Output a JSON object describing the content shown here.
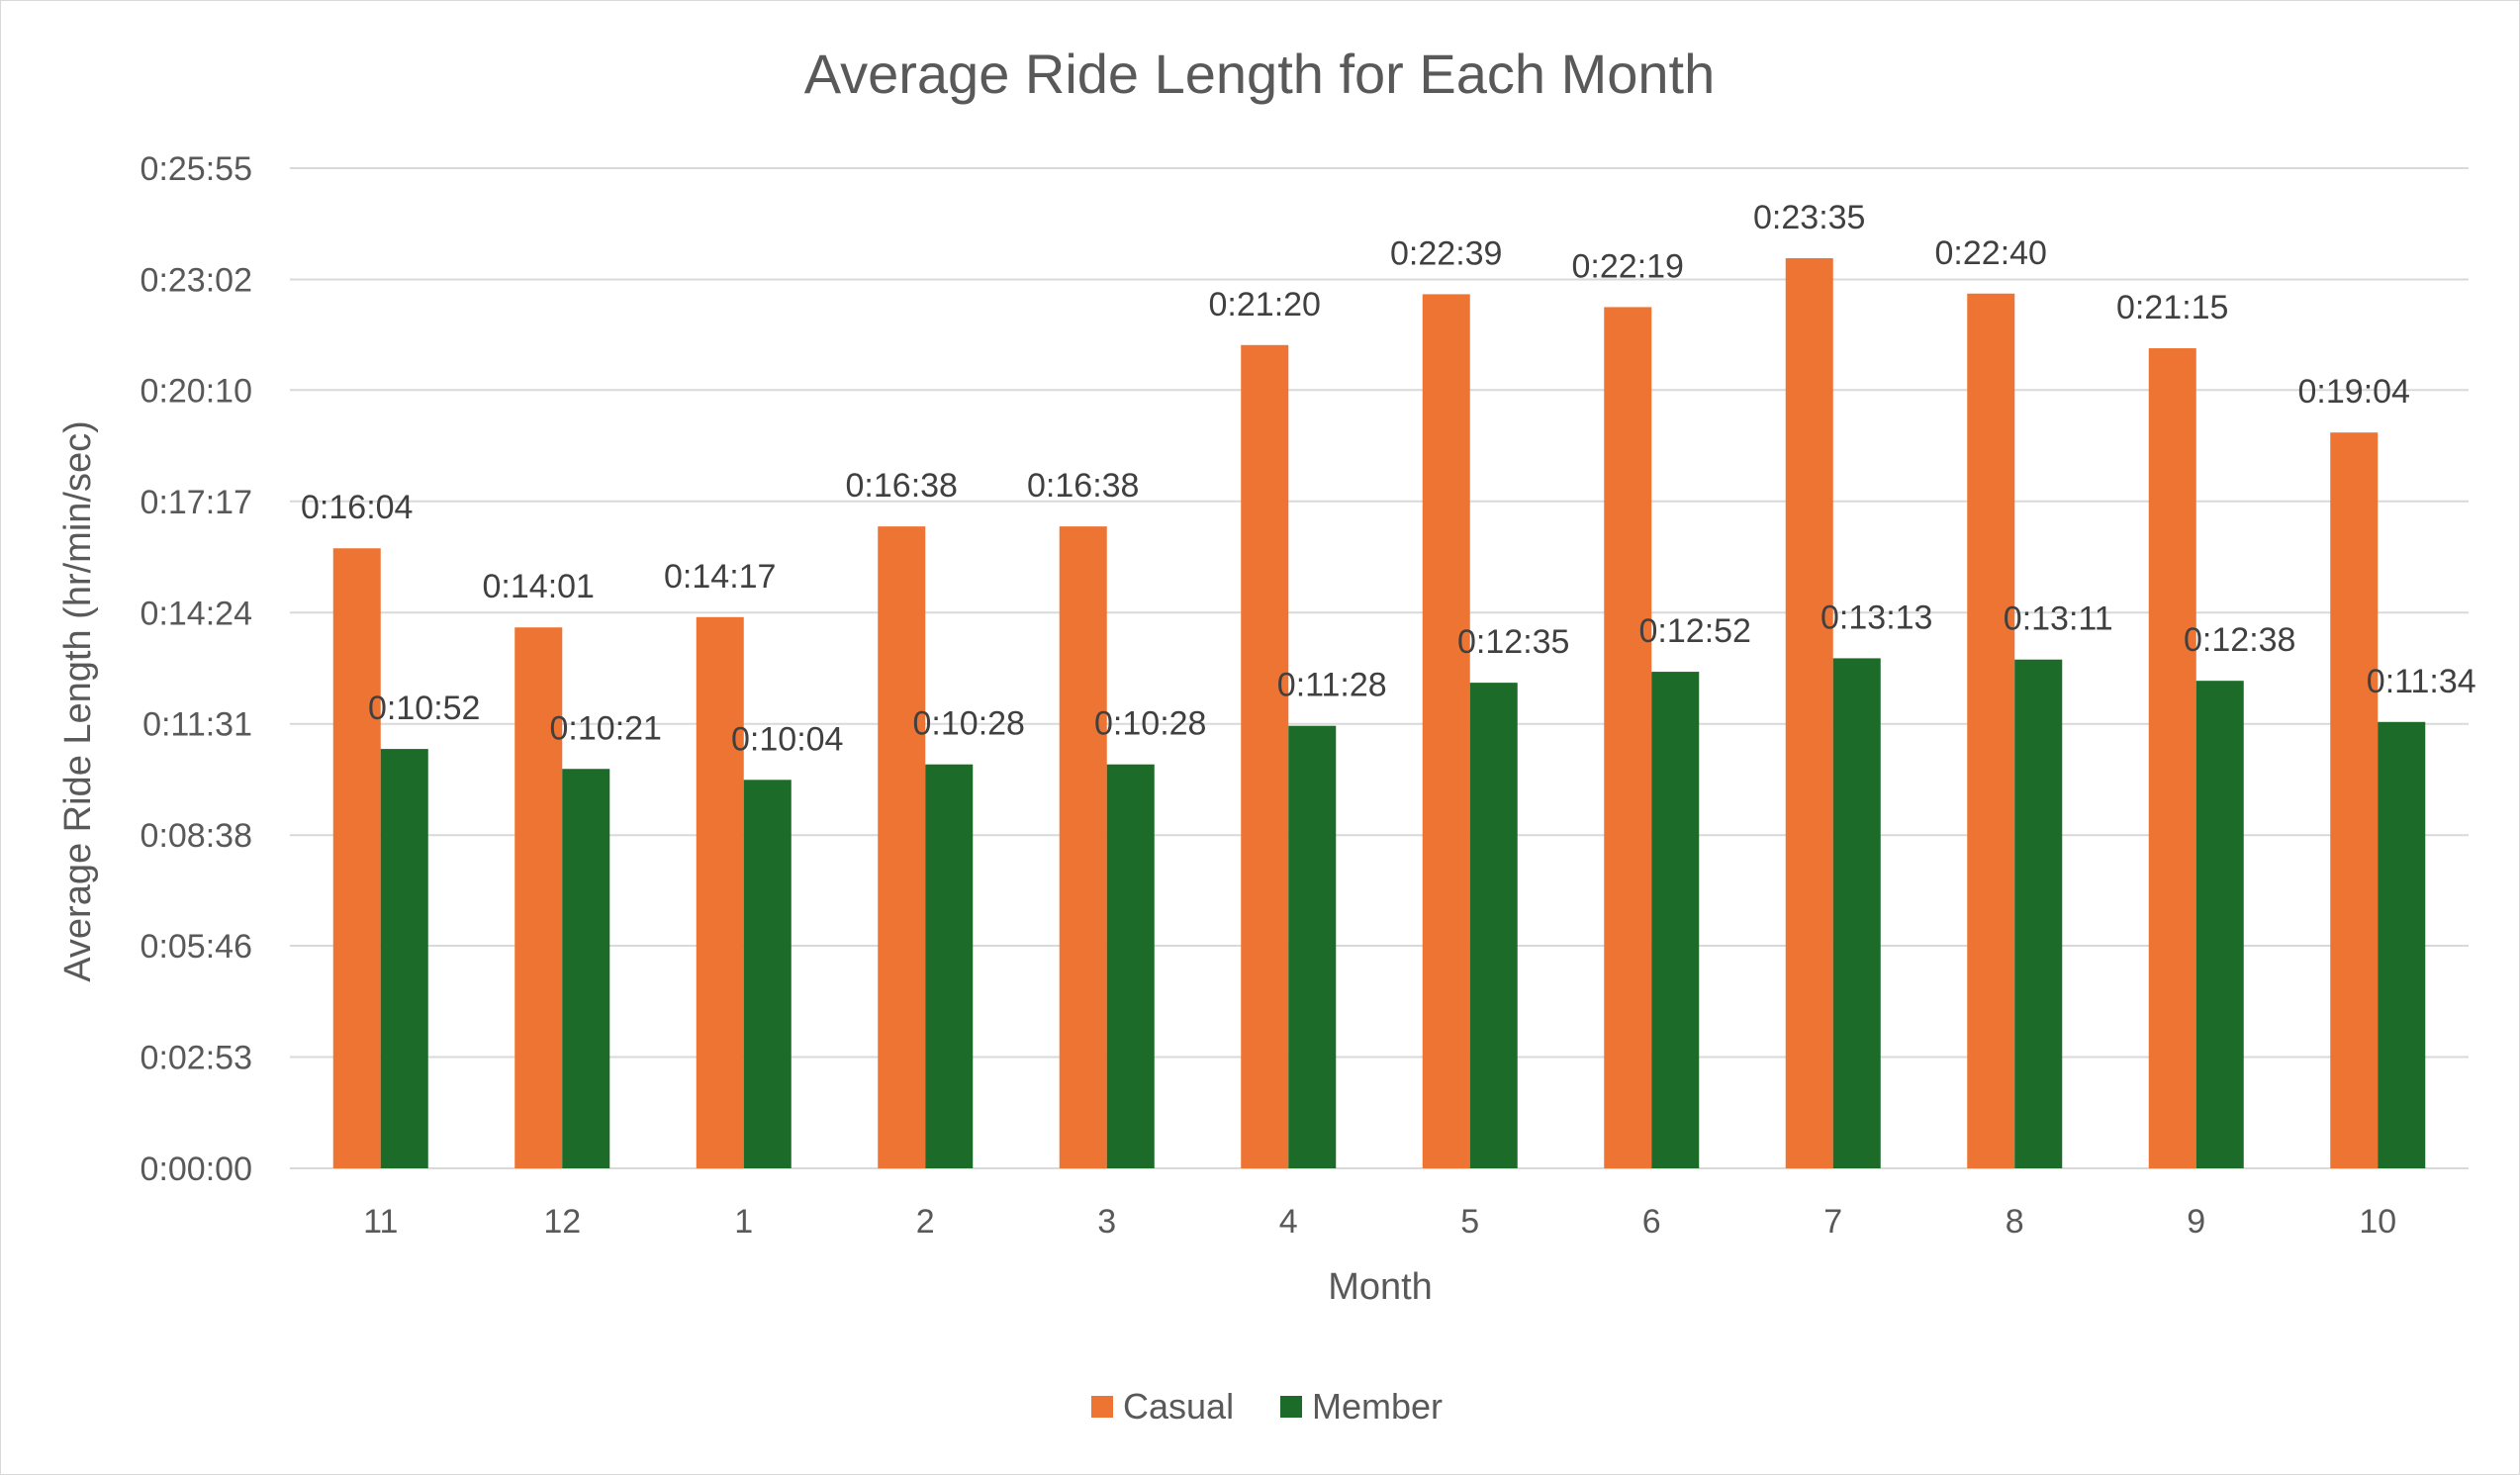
{
  "chart_data": {
    "type": "bar",
    "title": "Average Ride Length for Each Month",
    "xlabel": "Month",
    "ylabel": "Average Ride Length (hr/min/sec)",
    "categories": [
      "11",
      "12",
      "1",
      "2",
      "3",
      "4",
      "5",
      "6",
      "7",
      "8",
      "9",
      "10"
    ],
    "y_ticks": [
      "0:00:00",
      "0:02:53",
      "0:05:46",
      "0:08:38",
      "0:11:31",
      "0:14:24",
      "0:17:17",
      "0:20:10",
      "0:23:02",
      "0:25:55"
    ],
    "ylim_seconds": [
      0,
      1555
    ],
    "grid": true,
    "legend_position": "bottom",
    "series": [
      {
        "name": "Casual",
        "color": "#ed7432",
        "values": [
          "0:16:04",
          "0:14:01",
          "0:14:17",
          "0:16:38",
          "0:16:38",
          "0:21:20",
          "0:22:39",
          "0:22:19",
          "0:23:35",
          "0:22:40",
          "0:21:15",
          "0:19:04"
        ]
      },
      {
        "name": "Member",
        "color": "#1c6b28",
        "values": [
          "0:10:52",
          "0:10:21",
          "0:10:04",
          "0:10:28",
          "0:10:28",
          "0:11:28",
          "0:12:35",
          "0:12:52",
          "0:13:13",
          "0:13:11",
          "0:12:38",
          "0:11:34"
        ]
      }
    ]
  }
}
